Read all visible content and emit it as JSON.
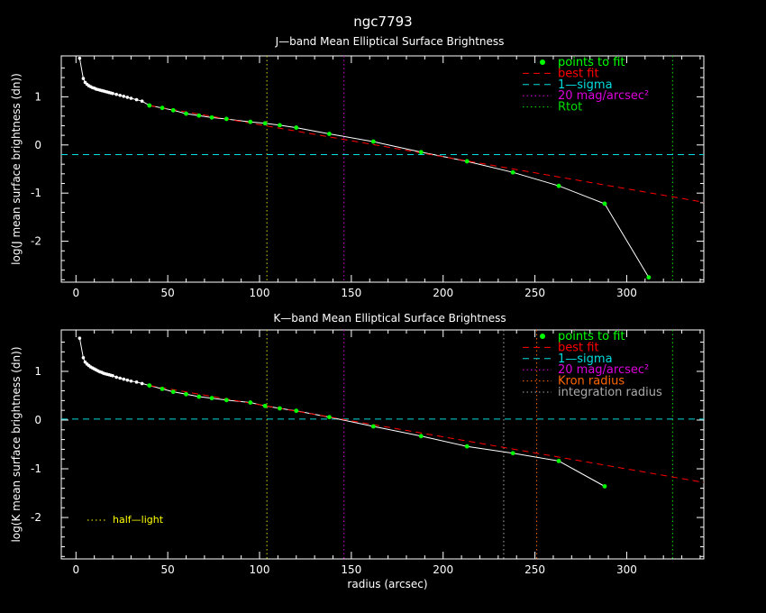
{
  "page_title": "ngc7793",
  "xlabel": "radius (arcsec)",
  "colors": {
    "background": "#000000",
    "axes": "#ffffff",
    "points_to_fit": "#00ff00",
    "best_fit": "#ff0000",
    "one_sigma": "#00dddd",
    "mag20": "#dd00dd",
    "rtot": "#00dd00",
    "kron": "#ff6600",
    "integration": "#aaaaaa",
    "half_light": "#ffff00",
    "profile": "#ffffff"
  },
  "chart_data": [
    {
      "type": "line",
      "title": "J—band Mean Elliptical Surface Brightness",
      "ylabel": "log(J mean surface brightness (dn))",
      "xlim": [
        -8,
        342
      ],
      "ylim": [
        -2.85,
        1.85
      ],
      "xticks": [
        0,
        50,
        100,
        150,
        200,
        250,
        300
      ],
      "yticks": [
        -2,
        -1,
        0,
        1
      ],
      "legend": [
        {
          "key": "points",
          "label": "points to fit",
          "color": "#00ff00",
          "style": "dot"
        },
        {
          "key": "fit",
          "label": "best fit",
          "color": "#ff0000",
          "style": "dash"
        },
        {
          "key": "sigma",
          "label": "1—sigma",
          "color": "#00dddd",
          "style": "dash"
        },
        {
          "key": "mag",
          "label": "20 mag/arcsec²",
          "color": "#dd00dd",
          "style": "dot"
        },
        {
          "key": "rtot",
          "label": "Rtot",
          "color": "#00dd00",
          "style": "dot"
        }
      ],
      "legend_position": "top-right",
      "profile": {
        "x": [
          2,
          4,
          5,
          6,
          7,
          8,
          9,
          10,
          11,
          12,
          13,
          14,
          15,
          16,
          17,
          18,
          19,
          20,
          22,
          24,
          26,
          28,
          30,
          33,
          36,
          40,
          47,
          53,
          60,
          67,
          74,
          82,
          95,
          103,
          111,
          120,
          138,
          162,
          188,
          213,
          238,
          263,
          288,
          312
        ],
        "y": [
          1.8,
          1.38,
          1.3,
          1.26,
          1.23,
          1.21,
          1.19,
          1.18,
          1.16,
          1.15,
          1.14,
          1.13,
          1.12,
          1.11,
          1.1,
          1.09,
          1.08,
          1.07,
          1.05,
          1.03,
          1.01,
          0.99,
          0.97,
          0.94,
          0.91,
          0.82,
          0.77,
          0.72,
          0.65,
          0.61,
          0.57,
          0.54,
          0.48,
          0.45,
          0.41,
          0.36,
          0.23,
          0.07,
          -0.15,
          -0.34,
          -0.57,
          -0.85,
          -1.22,
          -2.75
        ]
      },
      "fit_points_from_x": 40,
      "best_fit": {
        "x": [
          40,
          342
        ],
        "y": [
          0.82,
          -1.19
        ]
      },
      "one_sigma_level": -0.2,
      "vlines": [
        {
          "x": 104,
          "color": "#dddd00",
          "style": "dot"
        },
        {
          "x": 146,
          "color": "#dd00dd",
          "style": "dot"
        },
        {
          "x": 325,
          "color": "#00dd00",
          "style": "dot"
        }
      ]
    },
    {
      "type": "line",
      "title": "K—band Mean Elliptical Surface Brightness",
      "ylabel": "log(K mean surface brightness (dn))",
      "xlim": [
        -8,
        342
      ],
      "ylim": [
        -2.85,
        1.85
      ],
      "xticks": [
        0,
        50,
        100,
        150,
        200,
        250,
        300
      ],
      "yticks": [
        -2,
        -1,
        0,
        1
      ],
      "legend": [
        {
          "key": "points",
          "label": "points to fit",
          "color": "#00ff00",
          "style": "dot"
        },
        {
          "key": "fit",
          "label": "best fit",
          "color": "#ff0000",
          "style": "dash"
        },
        {
          "key": "sigma",
          "label": "1—sigma",
          "color": "#00dddd",
          "style": "dash"
        },
        {
          "key": "mag",
          "label": "20 mag/arcsec²",
          "color": "#dd00dd",
          "style": "dot"
        },
        {
          "key": "kron",
          "label": "Kron radius",
          "color": "#ff6600",
          "style": "dot"
        },
        {
          "key": "integ",
          "label": "integration radius",
          "color": "#aaaaaa",
          "style": "dot"
        }
      ],
      "legend_position": "top-right",
      "annotation": {
        "label": "half—light",
        "color": "#ffff00",
        "style": "dot",
        "position": "bottom-left"
      },
      "profile": {
        "x": [
          2,
          4,
          5,
          6,
          7,
          8,
          9,
          10,
          11,
          12,
          13,
          14,
          15,
          16,
          17,
          18,
          19,
          20,
          22,
          24,
          26,
          28,
          30,
          33,
          36,
          40,
          47,
          53,
          60,
          67,
          74,
          82,
          95,
          103,
          111,
          120,
          138,
          162,
          188,
          213,
          238,
          263,
          288
        ],
        "y": [
          1.68,
          1.28,
          1.19,
          1.15,
          1.12,
          1.09,
          1.07,
          1.05,
          1.03,
          1.01,
          0.99,
          0.98,
          0.96,
          0.95,
          0.94,
          0.93,
          0.92,
          0.91,
          0.88,
          0.86,
          0.84,
          0.82,
          0.8,
          0.78,
          0.75,
          0.71,
          0.64,
          0.58,
          0.53,
          0.48,
          0.45,
          0.41,
          0.36,
          0.29,
          0.24,
          0.19,
          0.06,
          -0.13,
          -0.33,
          -0.54,
          -0.68,
          -0.84,
          -1.36
        ]
      },
      "fit_points_from_x": 40,
      "best_fit": {
        "x": [
          40,
          342
        ],
        "y": [
          0.71,
          -1.28
        ]
      },
      "one_sigma_level": 0.02,
      "vlines": [
        {
          "x": 104,
          "color": "#dddd00",
          "style": "dot"
        },
        {
          "x": 146,
          "color": "#dd00dd",
          "style": "dot"
        },
        {
          "x": 233,
          "color": "#aaaaaa",
          "style": "dot"
        },
        {
          "x": 251,
          "color": "#ff6600",
          "style": "dot"
        },
        {
          "x": 325,
          "color": "#00dd00",
          "style": "dot"
        }
      ]
    }
  ]
}
